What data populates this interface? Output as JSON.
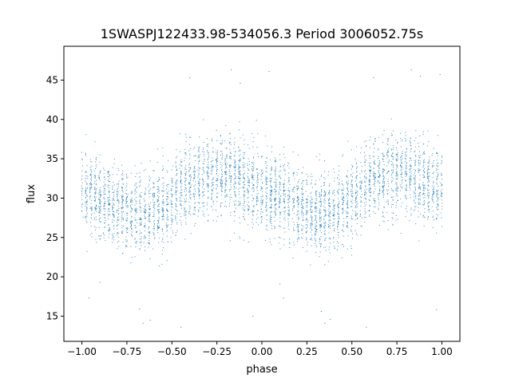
{
  "chart_data": {
    "type": "scatter",
    "title": "1SWASPJ122433.98-534056.3 Period 3006052.75s",
    "xlabel": "phase",
    "ylabel": "flux",
    "xlim": [
      -1.1,
      1.1
    ],
    "ylim": [
      11.8,
      49.3
    ],
    "grid": false,
    "marker_color": "#1f77b4",
    "xticks": [
      {
        "value": -1.0,
        "label": "−1.00"
      },
      {
        "value": -0.75,
        "label": "−0.75"
      },
      {
        "value": -0.5,
        "label": "−0.50"
      },
      {
        "value": -0.25,
        "label": "−0.25"
      },
      {
        "value": 0.0,
        "label": "0.00"
      },
      {
        "value": 0.25,
        "label": "0.25"
      },
      {
        "value": 0.5,
        "label": "0.50"
      },
      {
        "value": 0.75,
        "label": "0.75"
      },
      {
        "value": 1.0,
        "label": "1.00"
      }
    ],
    "yticks": [
      {
        "value": 15,
        "label": "15"
      },
      {
        "value": 20,
        "label": "20"
      },
      {
        "value": 25,
        "label": "25"
      },
      {
        "value": 30,
        "label": "30"
      },
      {
        "value": 35,
        "label": "35"
      },
      {
        "value": 40,
        "label": "40"
      },
      {
        "value": 45,
        "label": "45"
      }
    ],
    "profile": {
      "phase": [
        -1.0,
        -0.95,
        -0.9,
        -0.85,
        -0.8,
        -0.75,
        -0.7,
        -0.65,
        -0.6,
        -0.55,
        -0.5,
        -0.45,
        -0.4,
        -0.35,
        -0.3,
        -0.25,
        -0.2,
        -0.15,
        -0.1,
        -0.05,
        0.0,
        0.05,
        0.1,
        0.15,
        0.2,
        0.25,
        0.3,
        0.35,
        0.4,
        0.45,
        0.5,
        0.55,
        0.6,
        0.65,
        0.7,
        0.75,
        0.8,
        0.85,
        0.9,
        0.95,
        1.0
      ],
      "median_flux": [
        31.0,
        30.5,
        30.0,
        29.5,
        29.0,
        28.5,
        28.0,
        28.0,
        28.5,
        29.0,
        29.5,
        31.0,
        32.0,
        32.5,
        33.0,
        33.0,
        33.0,
        32.5,
        32.0,
        31.5,
        31.0,
        30.5,
        30.0,
        29.5,
        29.0,
        28.5,
        28.0,
        28.0,
        28.5,
        29.0,
        29.5,
        31.0,
        32.0,
        32.5,
        33.0,
        33.0,
        33.0,
        32.5,
        32.0,
        31.5,
        31.0
      ],
      "spread": 5.5
    },
    "outliers": [
      [
        -0.96,
        17.3
      ],
      [
        -0.9,
        19.3
      ],
      [
        -0.68,
        15.9
      ],
      [
        -0.66,
        14.1
      ],
      [
        -0.62,
        14.5
      ],
      [
        -0.45,
        13.6
      ],
      [
        -0.4,
        45.3
      ],
      [
        -0.17,
        46.3
      ],
      [
        -0.12,
        44.6
      ],
      [
        -0.05,
        15.0
      ],
      [
        0.04,
        46.1
      ],
      [
        0.1,
        19.1
      ],
      [
        0.12,
        17.3
      ],
      [
        0.33,
        15.6
      ],
      [
        0.35,
        14.1
      ],
      [
        0.38,
        14.6
      ],
      [
        0.58,
        13.6
      ],
      [
        0.62,
        45.3
      ],
      [
        0.83,
        46.3
      ],
      [
        0.88,
        45.5
      ],
      [
        0.97,
        15.8
      ],
      [
        0.99,
        45.7
      ]
    ]
  }
}
